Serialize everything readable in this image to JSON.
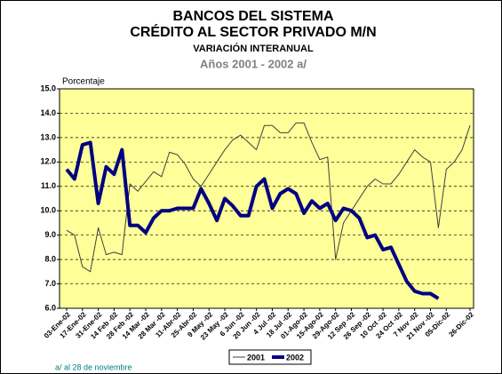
{
  "chart_data": {
    "type": "line",
    "title": "BANCOS DEL SISTEMA",
    "title_line2": "CRÉDITO AL SECTOR PRIVADO M/N",
    "subtitle": "VARIACIÓN INTERANUAL",
    "subtitle_line2": "Años 2001 - 2002 a/",
    "y_axis_label": "Porcentaje",
    "footnote": "a/ al 28 de noviembre",
    "categories": [
      "03-Ene-02",
      null,
      "17-Ene-02",
      null,
      "31-Ene-02",
      null,
      "14 Feb -02",
      null,
      "28 Feb -02",
      null,
      "14 Mar -02",
      null,
      "28 Mar -02",
      null,
      "11-Abr-02",
      null,
      "25-Abr-02",
      null,
      "9 May -02",
      null,
      "23 May -02",
      null,
      "6 Jun -02",
      null,
      "20 Jun -02",
      null,
      "4 Jul -02",
      null,
      "18 Jul -02",
      null,
      "01-Ago-02",
      null,
      "15-Ago-02",
      null,
      "29-Ago-02",
      null,
      "12 Sep -02",
      null,
      "26 Sep -02",
      null,
      "10 Oct -02",
      null,
      "24 Oct -02",
      null,
      "7 Nov -02",
      null,
      "21 Nov -02",
      null,
      "05-Dic-02",
      null,
      null,
      "26-Dic-02"
    ],
    "series": [
      {
        "name": "2001",
        "color": "#404040",
        "values": [
          9.2,
          9.0,
          7.7,
          7.5,
          9.3,
          8.2,
          8.3,
          8.2,
          11.1,
          10.8,
          11.2,
          11.6,
          11.4,
          12.4,
          12.3,
          11.9,
          11.3,
          11.0,
          11.5,
          12.0,
          12.5,
          12.9,
          13.1,
          12.8,
          12.5,
          13.5,
          13.5,
          13.2,
          13.2,
          13.6,
          13.6,
          12.8,
          12.1,
          12.2,
          8.0,
          9.5,
          10.0,
          10.5,
          11.0,
          11.3,
          11.1,
          11.1,
          11.5,
          12.0,
          12.5,
          12.2,
          12.0,
          9.3,
          11.7,
          12.0,
          12.5,
          13.5
        ]
      },
      {
        "name": "2002",
        "color": "#000080",
        "values": [
          11.7,
          11.3,
          12.7,
          12.8,
          10.3,
          11.8,
          11.5,
          12.5,
          9.4,
          9.4,
          9.1,
          9.7,
          10.0,
          10.0,
          10.1,
          10.1,
          10.1,
          10.9,
          10.3,
          9.6,
          10.5,
          10.2,
          9.8,
          9.8,
          11.0,
          11.3,
          10.1,
          10.7,
          10.9,
          10.7,
          9.9,
          10.4,
          10.1,
          10.3,
          9.6,
          10.1,
          10.0,
          9.7,
          8.9,
          9.0,
          8.4,
          8.5,
          7.8,
          7.1,
          6.7,
          6.6,
          6.6,
          6.4,
          null,
          null,
          null,
          null
        ]
      }
    ],
    "ylim": [
      6,
      15
    ],
    "yticks": [
      {
        "value": 6,
        "label": "6.0"
      },
      {
        "value": 7,
        "label": "7.0"
      },
      {
        "value": 8,
        "label": "8.0"
      },
      {
        "value": 9,
        "label": "9.0"
      },
      {
        "value": 10,
        "label": "10.0"
      },
      {
        "value": 11,
        "label": "11.0"
      },
      {
        "value": 12,
        "label": "12.0"
      },
      {
        "value": 13,
        "label": "13.0"
      },
      {
        "value": 14,
        "label": "14.0"
      },
      {
        "value": 15,
        "label": "15.0"
      }
    ],
    "grid": true,
    "legend": "bottom"
  }
}
